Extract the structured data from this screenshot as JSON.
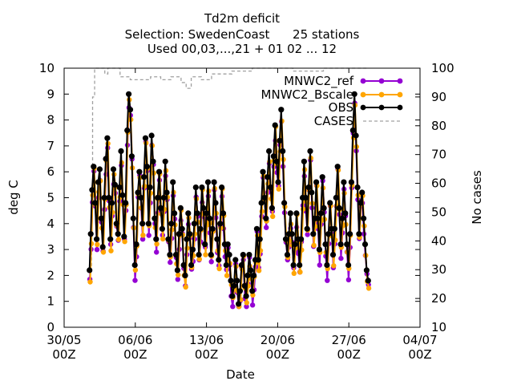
{
  "chart_data": {
    "type": "line",
    "title_lines": [
      "Td2m deficit",
      "Selection: SwedenCoast      25 stations",
      "Used 00,03,...,21 + 01 02 ... 12"
    ],
    "xlabel": "Date",
    "ylabel": "deg C",
    "y2label": "No cases",
    "x_ticks": [
      {
        "top": "30/05",
        "bottom": "00Z"
      },
      {
        "top": "06/06",
        "bottom": "00Z"
      },
      {
        "top": "13/06",
        "bottom": "00Z"
      },
      {
        "top": "20/06",
        "bottom": "00Z"
      },
      {
        "top": "27/06",
        "bottom": "00Z"
      },
      {
        "top": "04/07",
        "bottom": "00Z"
      }
    ],
    "x_tick_days": [
      0,
      7,
      14,
      21,
      28,
      35
    ],
    "xlim_days": [
      0,
      35
    ],
    "ylim": [
      0,
      10
    ],
    "y_ticks": [
      "0",
      "1",
      "2",
      "3",
      "4",
      "5",
      "6",
      "7",
      "8",
      "9",
      "10"
    ],
    "y2lim": [
      10,
      100
    ],
    "y2_ticks": [
      "10",
      "20",
      "30",
      "40",
      "50",
      "60",
      "70",
      "80",
      "90",
      "100"
    ],
    "grid": false,
    "legend_position": "top-right",
    "series": [
      {
        "name": "MNWC2_ref",
        "legend": "MNWC2_ref",
        "color": "#9400d3",
        "axis": "y"
      },
      {
        "name": "MNWC2_Bscale",
        "legend": "MNWC2_Bscale",
        "color": "#ffa500",
        "axis": "y"
      },
      {
        "name": "OBS",
        "legend": "OBS",
        "color": "#000000",
        "axis": "y"
      },
      {
        "name": "CASES",
        "legend": "CASES",
        "color": "#a0a0a0",
        "axis": "y2",
        "dashed": true
      }
    ],
    "obs_points_approx": [
      [
        2.5,
        2.2
      ],
      [
        2.62,
        3.6
      ],
      [
        2.75,
        5.3
      ],
      [
        2.9,
        6.2
      ],
      [
        3.05,
        4.8
      ],
      [
        3.2,
        3.4
      ],
      [
        3.35,
        5.6
      ],
      [
        3.5,
        6.1
      ],
      [
        3.65,
        4.2
      ],
      [
        3.8,
        3.1
      ],
      [
        3.95,
        5.0
      ],
      [
        4.1,
        6.5
      ],
      [
        4.25,
        7.3
      ],
      [
        4.4,
        5.0
      ],
      [
        4.55,
        3.4
      ],
      [
        4.7,
        4.8
      ],
      [
        4.85,
        6.1
      ],
      [
        5.0,
        5.5
      ],
      [
        5.15,
        4.0
      ],
      [
        5.3,
        3.6
      ],
      [
        5.45,
        5.4
      ],
      [
        5.6,
        6.8
      ],
      [
        5.75,
        5.1
      ],
      [
        5.9,
        3.5
      ],
      [
        6.05,
        4.8
      ],
      [
        6.2,
        7.6
      ],
      [
        6.35,
        9.0
      ],
      [
        6.5,
        8.4
      ],
      [
        6.65,
        6.6
      ],
      [
        6.8,
        4.2
      ],
      [
        6.95,
        2.4
      ],
      [
        7.1,
        3.2
      ],
      [
        7.25,
        5.2
      ],
      [
        7.4,
        6.0
      ],
      [
        7.55,
        5.0
      ],
      [
        7.7,
        4.0
      ],
      [
        7.85,
        5.8
      ],
      [
        8.0,
        7.3
      ],
      [
        8.15,
        6.2
      ],
      [
        8.3,
        4.0
      ],
      [
        8.45,
        5.4
      ],
      [
        8.6,
        7.4
      ],
      [
        8.75,
        6.4
      ],
      [
        8.9,
        4.2
      ],
      [
        9.05,
        3.4
      ],
      [
        9.2,
        5.0
      ],
      [
        9.35,
        6.0
      ],
      [
        9.5,
        4.6
      ],
      [
        9.65,
        3.8
      ],
      [
        9.8,
        5.0
      ],
      [
        9.95,
        6.4
      ],
      [
        10.1,
        5.2
      ],
      [
        10.25,
        3.4
      ],
      [
        10.4,
        2.8
      ],
      [
        10.55,
        4.0
      ],
      [
        10.7,
        5.6
      ],
      [
        10.85,
        4.4
      ],
      [
        11.0,
        2.8
      ],
      [
        11.15,
        2.2
      ],
      [
        11.3,
        3.6
      ],
      [
        11.45,
        4.6
      ],
      [
        11.6,
        3.8
      ],
      [
        11.75,
        2.4
      ],
      [
        11.9,
        2.0
      ],
      [
        12.05,
        3.4
      ],
      [
        12.2,
        4.4
      ],
      [
        12.35,
        3.6
      ],
      [
        12.5,
        2.4
      ],
      [
        12.65,
        3.0
      ],
      [
        12.8,
        4.0
      ],
      [
        12.95,
        5.4
      ],
      [
        13.1,
        4.4
      ],
      [
        13.25,
        2.8
      ],
      [
        13.4,
        3.8
      ],
      [
        13.55,
        5.4
      ],
      [
        13.7,
        4.6
      ],
      [
        13.85,
        3.2
      ],
      [
        14.0,
        4.4
      ],
      [
        14.15,
        5.6
      ],
      [
        14.3,
        4.2
      ],
      [
        14.45,
        2.8
      ],
      [
        14.6,
        3.8
      ],
      [
        14.75,
        5.6
      ],
      [
        14.9,
        4.8
      ],
      [
        15.05,
        3.4
      ],
      [
        15.2,
        2.6
      ],
      [
        15.35,
        4.0
      ],
      [
        15.5,
        5.4
      ],
      [
        15.65,
        4.4
      ],
      [
        15.8,
        3.2
      ],
      [
        15.95,
        2.4
      ],
      [
        16.1,
        3.2
      ],
      [
        16.25,
        2.8
      ],
      [
        16.4,
        1.8
      ],
      [
        16.55,
        1.2
      ],
      [
        16.7,
        1.6
      ],
      [
        16.85,
        2.6
      ],
      [
        17.0,
        1.8
      ],
      [
        17.15,
        0.9
      ],
      [
        17.3,
        1.4
      ],
      [
        17.45,
        2.4
      ],
      [
        17.6,
        2.8
      ],
      [
        17.75,
        1.6
      ],
      [
        17.9,
        1.2
      ],
      [
        18.05,
        2.0
      ],
      [
        18.2,
        2.8
      ],
      [
        18.35,
        2.2
      ],
      [
        18.5,
        1.4
      ],
      [
        18.65,
        2.0
      ],
      [
        18.8,
        2.6
      ],
      [
        18.95,
        3.8
      ],
      [
        19.1,
        2.6
      ],
      [
        19.25,
        3.4
      ],
      [
        19.4,
        4.8
      ],
      [
        19.55,
        6.0
      ],
      [
        19.7,
        5.0
      ],
      [
        19.85,
        4.2
      ],
      [
        20.0,
        5.8
      ],
      [
        20.15,
        6.8
      ],
      [
        20.3,
        5.4
      ],
      [
        20.45,
        4.6
      ],
      [
        20.6,
        6.6
      ],
      [
        20.75,
        7.8
      ],
      [
        20.9,
        6.4
      ],
      [
        21.05,
        5.6
      ],
      [
        21.2,
        7.2
      ],
      [
        21.35,
        8.4
      ],
      [
        21.5,
        6.8
      ],
      [
        21.65,
        4.8
      ],
      [
        21.8,
        3.4
      ],
      [
        21.95,
        2.8
      ],
      [
        22.1,
        3.6
      ],
      [
        22.25,
        4.4
      ],
      [
        22.4,
        3.6
      ],
      [
        22.55,
        2.4
      ],
      [
        22.7,
        3.2
      ],
      [
        22.85,
        4.4
      ],
      [
        23.0,
        3.4
      ],
      [
        23.15,
        2.4
      ],
      [
        23.3,
        3.4
      ],
      [
        23.45,
        5.0
      ],
      [
        23.6,
        6.4
      ],
      [
        23.75,
        5.0
      ],
      [
        23.9,
        3.8
      ],
      [
        24.05,
        5.4
      ],
      [
        24.2,
        6.8
      ],
      [
        24.35,
        5.2
      ],
      [
        24.5,
        3.6
      ],
      [
        24.65,
        4.2
      ],
      [
        24.8,
        5.6
      ],
      [
        24.95,
        4.2
      ],
      [
        25.1,
        3.0
      ],
      [
        25.25,
        4.4
      ],
      [
        25.4,
        5.8
      ],
      [
        25.55,
        4.6
      ],
      [
        25.7,
        3.2
      ],
      [
        25.85,
        2.4
      ],
      [
        26.0,
        3.6
      ],
      [
        26.15,
        4.8
      ],
      [
        26.3,
        3.8
      ],
      [
        26.45,
        2.8
      ],
      [
        26.6,
        3.8
      ],
      [
        26.75,
        5.0
      ],
      [
        26.9,
        6.2
      ],
      [
        27.05,
        4.6
      ],
      [
        27.2,
        3.2
      ],
      [
        27.35,
        4.2
      ],
      [
        27.5,
        5.6
      ],
      [
        27.65,
        4.4
      ],
      [
        27.8,
        3.2
      ],
      [
        27.95,
        2.4
      ],
      [
        28.1,
        3.6
      ],
      [
        28.25,
        5.6
      ],
      [
        28.4,
        7.6
      ],
      [
        28.55,
        9.0
      ],
      [
        28.7,
        7.4
      ],
      [
        28.85,
        5.4
      ],
      [
        29.0,
        3.6
      ],
      [
        29.15,
        4.8
      ],
      [
        29.3,
        5.2
      ],
      [
        29.45,
        4.2
      ],
      [
        29.6,
        3.2
      ],
      [
        29.75,
        2.2
      ],
      [
        29.9,
        1.8
      ]
    ],
    "cases_steps_approx": [
      [
        2.5,
        30
      ],
      [
        2.7,
        55
      ],
      [
        2.8,
        90
      ],
      [
        3.0,
        100
      ],
      [
        4.0,
        98
      ],
      [
        4.3,
        100
      ],
      [
        5.5,
        97
      ],
      [
        6.5,
        96
      ],
      [
        7.5,
        96
      ],
      [
        8.5,
        97
      ],
      [
        9.5,
        96
      ],
      [
        10.5,
        97
      ],
      [
        11.5,
        95
      ],
      [
        12.0,
        93
      ],
      [
        12.5,
        97
      ],
      [
        13.5,
        96
      ],
      [
        14.5,
        98
      ],
      [
        15.5,
        98
      ],
      [
        16.5,
        99
      ],
      [
        17.5,
        99
      ],
      [
        18.5,
        100
      ],
      [
        19.5,
        100
      ],
      [
        20.5,
        100
      ],
      [
        21.5,
        100
      ],
      [
        22.5,
        99
      ],
      [
        23.5,
        99
      ],
      [
        24.5,
        99
      ],
      [
        25.5,
        100
      ],
      [
        26.5,
        100
      ],
      [
        27.5,
        100
      ],
      [
        28.5,
        100
      ],
      [
        29.5,
        100
      ],
      [
        29.9,
        100
      ]
    ]
  }
}
